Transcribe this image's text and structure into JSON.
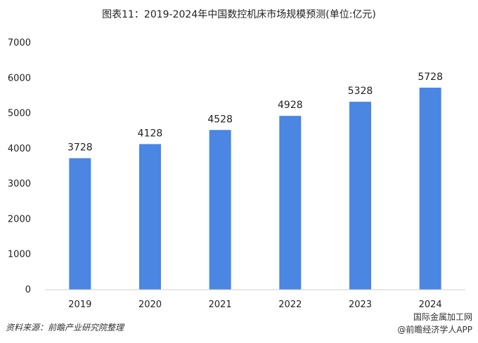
{
  "chart_data": {
    "type": "bar",
    "title": "图表11：2019-2024年中国数控机床市场规模预测(单位:亿元)",
    "categories": [
      "2019",
      "2020",
      "2021",
      "2022",
      "2023",
      "2024"
    ],
    "values": [
      3728,
      4128,
      4528,
      4928,
      5328,
      5728
    ],
    "ylim": [
      0,
      7000
    ],
    "yticks": [
      0,
      1000,
      2000,
      3000,
      4000,
      5000,
      6000,
      7000
    ],
    "xlabel": "",
    "ylabel": "",
    "grid": false,
    "bar_color": "#4a86e2"
  },
  "source": "资料来源：前瞻产业研究院整理",
  "footer": {
    "top": "国际金属加工网",
    "bottom": "@前瞻经济学人APP"
  }
}
